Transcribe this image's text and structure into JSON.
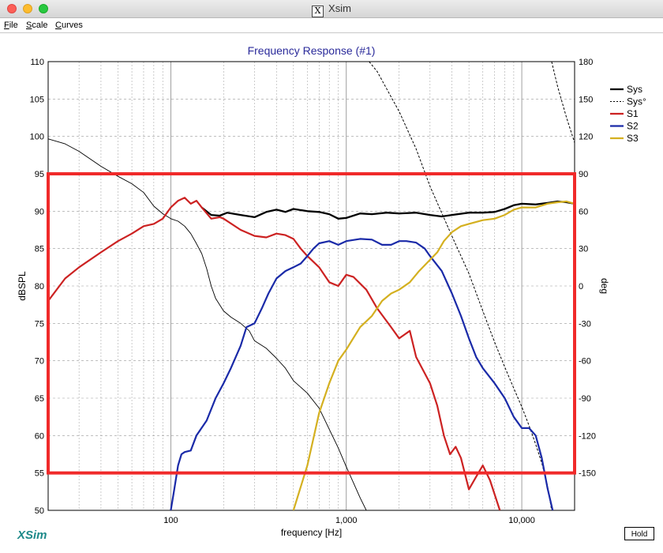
{
  "window": {
    "title": "Xsim"
  },
  "menu": {
    "items": [
      "File",
      "Scale",
      "Curves"
    ]
  },
  "brand": "XSim",
  "hold_button": "Hold",
  "colors": {
    "sys": "#000000",
    "s1": "#cc2222",
    "s2": "#1a2aa8",
    "s3": "#d4b020",
    "title": "#2a2a9a",
    "highlight": "#f02a2a"
  },
  "chart_data": {
    "type": "line",
    "title": "Frequency Response (#1)",
    "xlabel": "frequency [Hz]",
    "ylabel": "dBSPL",
    "ylabel_right": "deg",
    "x_scale": "log",
    "xlim": [
      20,
      20000
    ],
    "ylim": [
      50,
      110
    ],
    "ylim_right": [
      -180,
      180
    ],
    "x_tick_labels": [
      {
        "value": 100,
        "label": "100"
      },
      {
        "value": 1000,
        "label": "1,000"
      },
      {
        "value": 10000,
        "label": "10,000"
      }
    ],
    "y_ticks": [
      50,
      55,
      60,
      65,
      70,
      75,
      80,
      85,
      90,
      95,
      100,
      105,
      110
    ],
    "y_ticks_right": [
      -150,
      -120,
      -90,
      -60,
      -30,
      0,
      30,
      60,
      90,
      120,
      150,
      180
    ],
    "grid": true,
    "legend_position": "top-right",
    "legend": [
      {
        "name": "Sys",
        "color": "#000000",
        "style": "solid"
      },
      {
        "name": "Sys°",
        "color": "#000000",
        "style": "dashed"
      },
      {
        "name": "S1",
        "color": "#cc2222",
        "style": "solid"
      },
      {
        "name": "S2",
        "color": "#1a2aa8",
        "style": "solid"
      },
      {
        "name": "S3",
        "color": "#d4b020",
        "style": "solid"
      }
    ],
    "series": [
      {
        "name": "Sys",
        "axis": "left",
        "color": "#000000",
        "width": 2.3,
        "style": "solid",
        "points": [
          [
            150,
            90.5
          ],
          [
            170,
            89.5
          ],
          [
            190,
            89.4
          ],
          [
            210,
            89.8
          ],
          [
            250,
            89.5
          ],
          [
            300,
            89.2
          ],
          [
            350,
            89.9
          ],
          [
            400,
            90.2
          ],
          [
            450,
            89.9
          ],
          [
            500,
            90.3
          ],
          [
            600,
            90.0
          ],
          [
            700,
            89.9
          ],
          [
            800,
            89.6
          ],
          [
            900,
            89.0
          ],
          [
            1000,
            89.1
          ],
          [
            1200,
            89.7
          ],
          [
            1400,
            89.6
          ],
          [
            1700,
            89.8
          ],
          [
            2000,
            89.7
          ],
          [
            2500,
            89.8
          ],
          [
            3000,
            89.5
          ],
          [
            3500,
            89.3
          ],
          [
            4000,
            89.5
          ],
          [
            5000,
            89.8
          ],
          [
            6000,
            89.8
          ],
          [
            7000,
            89.9
          ],
          [
            8000,
            90.3
          ],
          [
            9000,
            90.8
          ],
          [
            10000,
            91.0
          ],
          [
            12000,
            90.9
          ],
          [
            14000,
            91.1
          ],
          [
            16000,
            91.3
          ],
          [
            18000,
            91.2
          ],
          [
            20000,
            91.0
          ]
        ]
      },
      {
        "name": "Sys°",
        "axis": "right",
        "color": "#000000",
        "width": 1,
        "style": "dashed",
        "points": [
          [
            1350,
            180
          ],
          [
            1500,
            172
          ],
          [
            2000,
            140
          ],
          [
            2500,
            110
          ],
          [
            3000,
            80
          ],
          [
            4000,
            40
          ],
          [
            5000,
            10
          ],
          [
            6000,
            -20
          ],
          [
            7000,
            -45
          ],
          [
            8000,
            -65
          ],
          [
            9000,
            -82
          ],
          [
            10000,
            -97
          ],
          [
            11000,
            -112
          ],
          [
            12000,
            -127
          ],
          [
            13000,
            -142
          ],
          [
            14000,
            -160
          ],
          [
            14800,
            -180
          ]
        ]
      },
      {
        "name": "Sys°",
        "axis": "right",
        "color": "#000000",
        "width": 1,
        "style": "dashed",
        "points": [
          [
            14800,
            180
          ],
          [
            16000,
            160
          ],
          [
            18000,
            135
          ],
          [
            20000,
            115
          ]
        ]
      },
      {
        "name": "Sys phase",
        "axis": "right",
        "color": "#000000",
        "width": 0.9,
        "style": "solid",
        "points": [
          [
            20,
            118
          ],
          [
            25,
            114
          ],
          [
            30,
            108
          ],
          [
            40,
            96
          ],
          [
            50,
            88
          ],
          [
            60,
            82
          ],
          [
            70,
            75
          ],
          [
            80,
            64
          ],
          [
            90,
            58
          ],
          [
            100,
            54
          ],
          [
            110,
            52
          ],
          [
            120,
            48
          ],
          [
            130,
            42
          ],
          [
            140,
            34
          ],
          [
            150,
            26
          ],
          [
            160,
            14
          ],
          [
            170,
            0
          ],
          [
            180,
            -10
          ],
          [
            200,
            -20
          ],
          [
            220,
            -25
          ],
          [
            250,
            -30
          ],
          [
            280,
            -36
          ],
          [
            300,
            -44
          ],
          [
            350,
            -50
          ],
          [
            400,
            -58
          ],
          [
            450,
            -66
          ],
          [
            500,
            -76
          ],
          [
            600,
            -86
          ],
          [
            700,
            -98
          ],
          [
            800,
            -115
          ],
          [
            900,
            -130
          ],
          [
            1000,
            -145
          ],
          [
            1100,
            -158
          ],
          [
            1200,
            -170
          ],
          [
            1300,
            -180
          ]
        ]
      },
      {
        "name": "S1",
        "axis": "left",
        "color": "#cc2222",
        "width": 2.2,
        "style": "solid",
        "points": [
          [
            20,
            78
          ],
          [
            25,
            81
          ],
          [
            30,
            82.5
          ],
          [
            40,
            84.5
          ],
          [
            50,
            86
          ],
          [
            60,
            87
          ],
          [
            70,
            88
          ],
          [
            80,
            88.3
          ],
          [
            90,
            89
          ],
          [
            100,
            90.5
          ],
          [
            110,
            91.4
          ],
          [
            120,
            91.8
          ],
          [
            130,
            91
          ],
          [
            140,
            91.4
          ],
          [
            150,
            90.5
          ],
          [
            170,
            89
          ],
          [
            190,
            89.2
          ],
          [
            200,
            89
          ],
          [
            250,
            87.5
          ],
          [
            300,
            86.7
          ],
          [
            350,
            86.5
          ],
          [
            400,
            87
          ],
          [
            450,
            86.8
          ],
          [
            500,
            86.3
          ],
          [
            550,
            85
          ],
          [
            600,
            84
          ],
          [
            700,
            82.5
          ],
          [
            800,
            80.5
          ],
          [
            900,
            80
          ],
          [
            1000,
            81.5
          ],
          [
            1100,
            81.2
          ],
          [
            1300,
            79.5
          ],
          [
            1500,
            77
          ],
          [
            1800,
            74.5
          ],
          [
            2000,
            73
          ],
          [
            2300,
            74
          ],
          [
            2500,
            70.5
          ],
          [
            3000,
            67
          ],
          [
            3300,
            64
          ],
          [
            3600,
            60
          ],
          [
            3900,
            57.5
          ],
          [
            4200,
            58.5
          ],
          [
            4500,
            57
          ],
          [
            5000,
            52.8
          ],
          [
            5500,
            54.5
          ],
          [
            6000,
            56
          ],
          [
            6600,
            54
          ],
          [
            7500,
            50
          ]
        ]
      },
      {
        "name": "S2",
        "axis": "left",
        "color": "#1a2aa8",
        "width": 2.2,
        "style": "solid",
        "points": [
          [
            100,
            50
          ],
          [
            105,
            53
          ],
          [
            110,
            56
          ],
          [
            115,
            57.5
          ],
          [
            120,
            57.8
          ],
          [
            130,
            58
          ],
          [
            140,
            60
          ],
          [
            160,
            62
          ],
          [
            180,
            65
          ],
          [
            200,
            67
          ],
          [
            220,
            69
          ],
          [
            250,
            72
          ],
          [
            270,
            74.5
          ],
          [
            300,
            75
          ],
          [
            330,
            77
          ],
          [
            360,
            79
          ],
          [
            400,
            81
          ],
          [
            450,
            82
          ],
          [
            500,
            82.5
          ],
          [
            550,
            83
          ],
          [
            600,
            84
          ],
          [
            650,
            85
          ],
          [
            700,
            85.7
          ],
          [
            800,
            86
          ],
          [
            900,
            85.5
          ],
          [
            1000,
            86
          ],
          [
            1200,
            86.3
          ],
          [
            1400,
            86.2
          ],
          [
            1600,
            85.5
          ],
          [
            1800,
            85.5
          ],
          [
            2000,
            86
          ],
          [
            2200,
            86
          ],
          [
            2500,
            85.8
          ],
          [
            2800,
            85
          ],
          [
            3000,
            84
          ],
          [
            3500,
            82
          ],
          [
            4000,
            79
          ],
          [
            4500,
            76
          ],
          [
            5000,
            73
          ],
          [
            5500,
            70.5
          ],
          [
            6000,
            69
          ],
          [
            7000,
            67
          ],
          [
            8000,
            65
          ],
          [
            9000,
            62.5
          ],
          [
            10000,
            61
          ],
          [
            11000,
            61
          ],
          [
            12000,
            60
          ],
          [
            13000,
            57
          ],
          [
            14000,
            53
          ],
          [
            15000,
            50
          ]
        ]
      },
      {
        "name": "S3",
        "axis": "left",
        "color": "#d4b020",
        "width": 2.2,
        "style": "solid",
        "points": [
          [
            500,
            50
          ],
          [
            600,
            56
          ],
          [
            700,
            63
          ],
          [
            800,
            67
          ],
          [
            900,
            70
          ],
          [
            1000,
            71.5
          ],
          [
            1200,
            74.5
          ],
          [
            1400,
            76
          ],
          [
            1600,
            78
          ],
          [
            1800,
            79
          ],
          [
            2000,
            79.5
          ],
          [
            2300,
            80.5
          ],
          [
            2600,
            82
          ],
          [
            3000,
            83.5
          ],
          [
            3300,
            84.5
          ],
          [
            3600,
            86
          ],
          [
            4000,
            87.2
          ],
          [
            4500,
            88
          ],
          [
            5000,
            88.3
          ],
          [
            6000,
            88.8
          ],
          [
            7000,
            89
          ],
          [
            8000,
            89.5
          ],
          [
            9000,
            90.2
          ],
          [
            10000,
            90.5
          ],
          [
            12000,
            90.5
          ],
          [
            14000,
            91
          ],
          [
            16000,
            91.2
          ],
          [
            18000,
            91.3
          ],
          [
            20000,
            91
          ]
        ]
      }
    ],
    "annotation_box": {
      "color": "#f02a2a",
      "y_range": [
        55,
        95
      ]
    }
  }
}
